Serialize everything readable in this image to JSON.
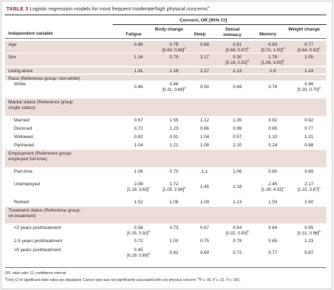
{
  "table": {
    "label": "TABLE 3",
    "title": " Logistic regression models for most frequent moderate/high physical concerns",
    "title_sup": "a",
    "span_header": "Concern, OR [95% CI]",
    "columns": [
      {
        "key": "var",
        "text": "Independent variable"
      },
      {
        "key": "fatigue",
        "text": "Fatigue"
      },
      {
        "key": "body",
        "text": "Body change"
      },
      {
        "key": "sleep",
        "text": "Sleep"
      },
      {
        "key": "sexual",
        "text": "Sexual intimacy"
      },
      {
        "key": "memory",
        "text": "Memory"
      },
      {
        "key": "weight",
        "text": "Weight change"
      }
    ],
    "rows": [
      {
        "label": "Age",
        "values": [
          "0.86",
          "0.75",
          "0.88",
          "0.81",
          "0.83",
          "0.77"
        ],
        "cis": [
          "",
          "[0.63, 0.89]",
          "",
          "[0.68, 0.97]",
          "[0.70, 1.00]",
          "[0.64, 0.92]"
        ],
        "sups": [
          "",
          "d",
          "",
          "b",
          "b",
          "c"
        ]
      },
      {
        "label": "Sex",
        "values": [
          "1.16",
          "0.79",
          "1.17",
          "0.30",
          "1.78",
          "1.05"
        ],
        "cis": [
          "",
          "",
          "",
          "[0.18, 0.51]",
          "[1.06, 3.00]",
          ""
        ],
        "sups": [
          "",
          "",
          "",
          "d",
          "b",
          ""
        ]
      },
      {
        "label": "Living alone",
        "values": [
          "1.31",
          "1.16",
          "1.27",
          "1.13",
          "0.9",
          "1.24"
        ],
        "cis": [
          "",
          "",
          "",
          "",
          "",
          ""
        ],
        "sups": [
          "",
          "",
          "",
          "",
          "",
          ""
        ]
      },
      {
        "label": "Race (Reference group: non-white)",
        "values": [
          "",
          "",
          "",
          "",
          "",
          ""
        ],
        "cis": [
          "",
          "",
          "",
          "",
          "",
          ""
        ],
        "sups": [
          "",
          "",
          "",
          "",
          "",
          ""
        ]
      },
      {
        "label": "White",
        "values": [
          "0.46",
          "0.46",
          "0.50",
          "0.69",
          "0.76",
          "0.46"
        ],
        "cis": [
          "",
          "[0.31, 0.69]",
          "",
          "",
          "",
          "[0.30, 0.70]"
        ],
        "sups": [
          "",
          "d",
          "",
          "",
          "",
          "d"
        ]
      },
      {
        "label": "Marital status (Reference group:",
        "label2": "single status)",
        "values": [
          "",
          "",
          "",
          "",
          "",
          ""
        ],
        "cis": [
          "",
          "",
          "",
          "",
          "",
          ""
        ],
        "sups": [
          "",
          "",
          "",
          "",
          "",
          ""
        ]
      },
      {
        "label": "Married",
        "values": [
          "0.67",
          "1.55",
          "1.12",
          "1.35",
          "0.82",
          "0.92"
        ],
        "cis": [
          "",
          "",
          "",
          "",
          "",
          ""
        ],
        "sups": [
          "",
          "",
          "",
          "",
          "",
          ""
        ]
      },
      {
        "label": "Divorced",
        "values": [
          "0.72",
          "1.23",
          "0.86",
          "0.99",
          "0.65",
          "0.77"
        ],
        "cis": [
          "",
          "",
          "",
          "",
          "",
          ""
        ],
        "sups": [
          "",
          "",
          "",
          "",
          "",
          ""
        ]
      },
      {
        "label": "Widowed",
        "values": [
          "0.82",
          "0.91",
          "1.04",
          "0.57",
          "1.10",
          "1.21"
        ],
        "cis": [
          "",
          "",
          "",
          "",
          "",
          ""
        ],
        "sups": [
          "",
          "",
          "",
          "",
          "",
          ""
        ]
      },
      {
        "label": "Partnered",
        "values": [
          "1.04",
          "1.21",
          "1.08",
          "2.20",
          "0.24",
          "0.88"
        ],
        "cis": [
          "",
          "",
          "",
          "",
          "",
          ""
        ],
        "sups": [
          "",
          "",
          "",
          "",
          "",
          ""
        ]
      },
      {
        "label": "Employment (Reference group:",
        "label2": "employed full-time)",
        "values": [
          "",
          "",
          "",
          "",
          "",
          ""
        ],
        "cis": [
          "",
          "",
          "",
          "",
          "",
          ""
        ],
        "sups": [
          "",
          "",
          "",
          "",
          "",
          ""
        ]
      },
      {
        "label": "Part-time",
        "values": [
          "1.09",
          "0.70",
          "1.1",
          "1.06",
          "0.60",
          "0.69"
        ],
        "cis": [
          "",
          "",
          "",
          "",
          "",
          ""
        ],
        "sups": [
          "",
          "",
          "",
          "",
          "",
          ""
        ]
      },
      {
        "label": "Unemployed",
        "values": [
          "2.08",
          "1.72",
          "1.45",
          "2.18",
          "2.45",
          "2.17"
        ],
        "cis": [
          "[1.18, 3.65]",
          "[1.00, 2.96]",
          "",
          "",
          "[1.39, 4.32]",
          "[1.22, 3.87]"
        ],
        "sups": [
          "c",
          "b",
          "",
          "",
          "c",
          "c"
        ]
      },
      {
        "label": "Retired",
        "values": [
          "1.52",
          "1.06",
          "1.09",
          "1.13",
          "1.53",
          "1.60"
        ],
        "cis": [
          "",
          "",
          "",
          "",
          "",
          ""
        ],
        "sups": [
          "",
          "",
          "",
          "",
          "",
          ""
        ]
      },
      {
        "label": "Treatment status (Reference group:",
        "label2": "on-treatment)",
        "values": [
          "",
          "",
          "",
          "",
          "",
          ""
        ],
        "cis": [
          "",
          "",
          "",
          "",
          "",
          ""
        ],
        "sups": [
          "",
          "",
          "",
          "",
          "",
          ""
        ]
      },
      {
        "label": "<2 years posttreatment",
        "values": [
          "0.56",
          "0.73",
          "0.67",
          "0.54",
          "0.64",
          "0.55"
        ],
        "cis": [
          "[0.35, 0.92]",
          "",
          "",
          "[0.32, 0.93]",
          "",
          "[0.31, 0.96]"
        ],
        "sups": [
          "b",
          "",
          "",
          "b",
          "",
          "b"
        ]
      },
      {
        "label": "2-5 years posttreatment",
        "values": [
          "0.72",
          "1.00",
          "0.75",
          "0.78",
          "0.85",
          "1.23"
        ],
        "cis": [
          "",
          "",
          "",
          "",
          "",
          ""
        ],
        "sups": [
          "",
          "",
          "",
          "",
          "",
          ""
        ]
      },
      {
        "label": ">5 years posttreatment",
        "values": [
          "0.45",
          "0.82",
          "0.69",
          "0.72",
          "0.77",
          "0.87"
        ],
        "cis": [
          "[0.29, 0.69]",
          "",
          "",
          "",
          "",
          ""
        ],
        "sups": [
          "d",
          "",
          "",
          "",
          "",
          ""
        ]
      }
    ],
    "footnote1": "OR, odds ratio; CI, confidence interval",
    "footnote2": "Only CI of significant odds ratios are displayed. Cancer type was not significantly associated with any physical concern.",
    "footnote2_tail": "P ≤ .05.  P ≤ .01.  P ≤ .001."
  }
}
